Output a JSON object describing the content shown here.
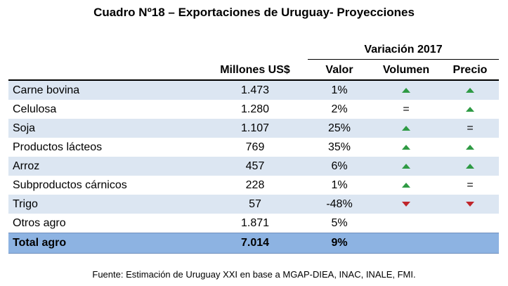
{
  "title": "Cuadro Nº18 – Exportaciones de Uruguay- Proyecciones",
  "group_header": "Variación 2017",
  "columns": [
    "",
    "Millones US$",
    "Valor",
    "Volumen",
    "Precio"
  ],
  "rows": [
    {
      "name": "Carne bovina",
      "millones": "1.473",
      "valor": "1%",
      "volumen": "up",
      "precio": "up"
    },
    {
      "name": "Celulosa",
      "millones": "1.280",
      "valor": "2%",
      "volumen": "equal",
      "precio": "up"
    },
    {
      "name": "Soja",
      "millones": "1.107",
      "valor": "25%",
      "volumen": "up",
      "precio": "equal"
    },
    {
      "name": "Productos lácteos",
      "millones": "769",
      "valor": "35%",
      "volumen": "up",
      "precio": "up"
    },
    {
      "name": "Arroz",
      "millones": "457",
      "valor": "6%",
      "volumen": "up",
      "precio": "up"
    },
    {
      "name": "Subproductos cárnicos",
      "millones": "228",
      "valor": "1%",
      "volumen": "up",
      "precio": "equal"
    },
    {
      "name": "Trigo",
      "millones": "57",
      "valor": "-48%",
      "volumen": "down",
      "precio": "down"
    },
    {
      "name": "Otros agro",
      "millones": "1.871",
      "valor": "5%",
      "volumen": "",
      "precio": ""
    }
  ],
  "total": {
    "name": "Total agro",
    "millones": "7.014",
    "valor": "9%"
  },
  "equal_symbol": "=",
  "colors": {
    "up": "#2e9a44",
    "down": "#c0252b",
    "shade": "#dce6f2",
    "total": "#8db3e2"
  },
  "source": "Fuente: Estimación de Uruguay XXI en base a MGAP-DIEA, INAC, INALE, FMI."
}
